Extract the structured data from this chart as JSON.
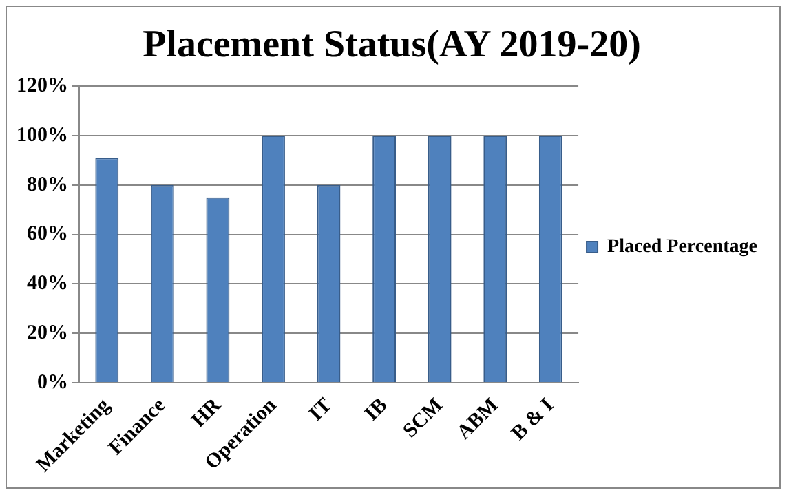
{
  "chart_data": {
    "type": "bar",
    "title": "Placement Status(AY 2019-20)",
    "categories": [
      "Marketing",
      "Finance",
      "HR",
      "Operation",
      "IT",
      "IB",
      "SCM",
      "ABM",
      "B & I"
    ],
    "series": [
      {
        "name": "Placed Percentage",
        "color": "#4f81bd",
        "values": [
          91,
          80,
          75,
          100,
          80,
          100,
          100,
          100,
          100
        ]
      }
    ],
    "ylim": [
      0,
      120
    ],
    "yticks": [
      {
        "value": 0,
        "label": "0%"
      },
      {
        "value": 20,
        "label": "20%"
      },
      {
        "value": 40,
        "label": "40%"
      },
      {
        "value": 60,
        "label": "60%"
      },
      {
        "value": 80,
        "label": "80%"
      },
      {
        "value": 100,
        "label": "100%"
      },
      {
        "value": 120,
        "label": "120%"
      }
    ],
    "grid": "y",
    "legend": "right"
  }
}
